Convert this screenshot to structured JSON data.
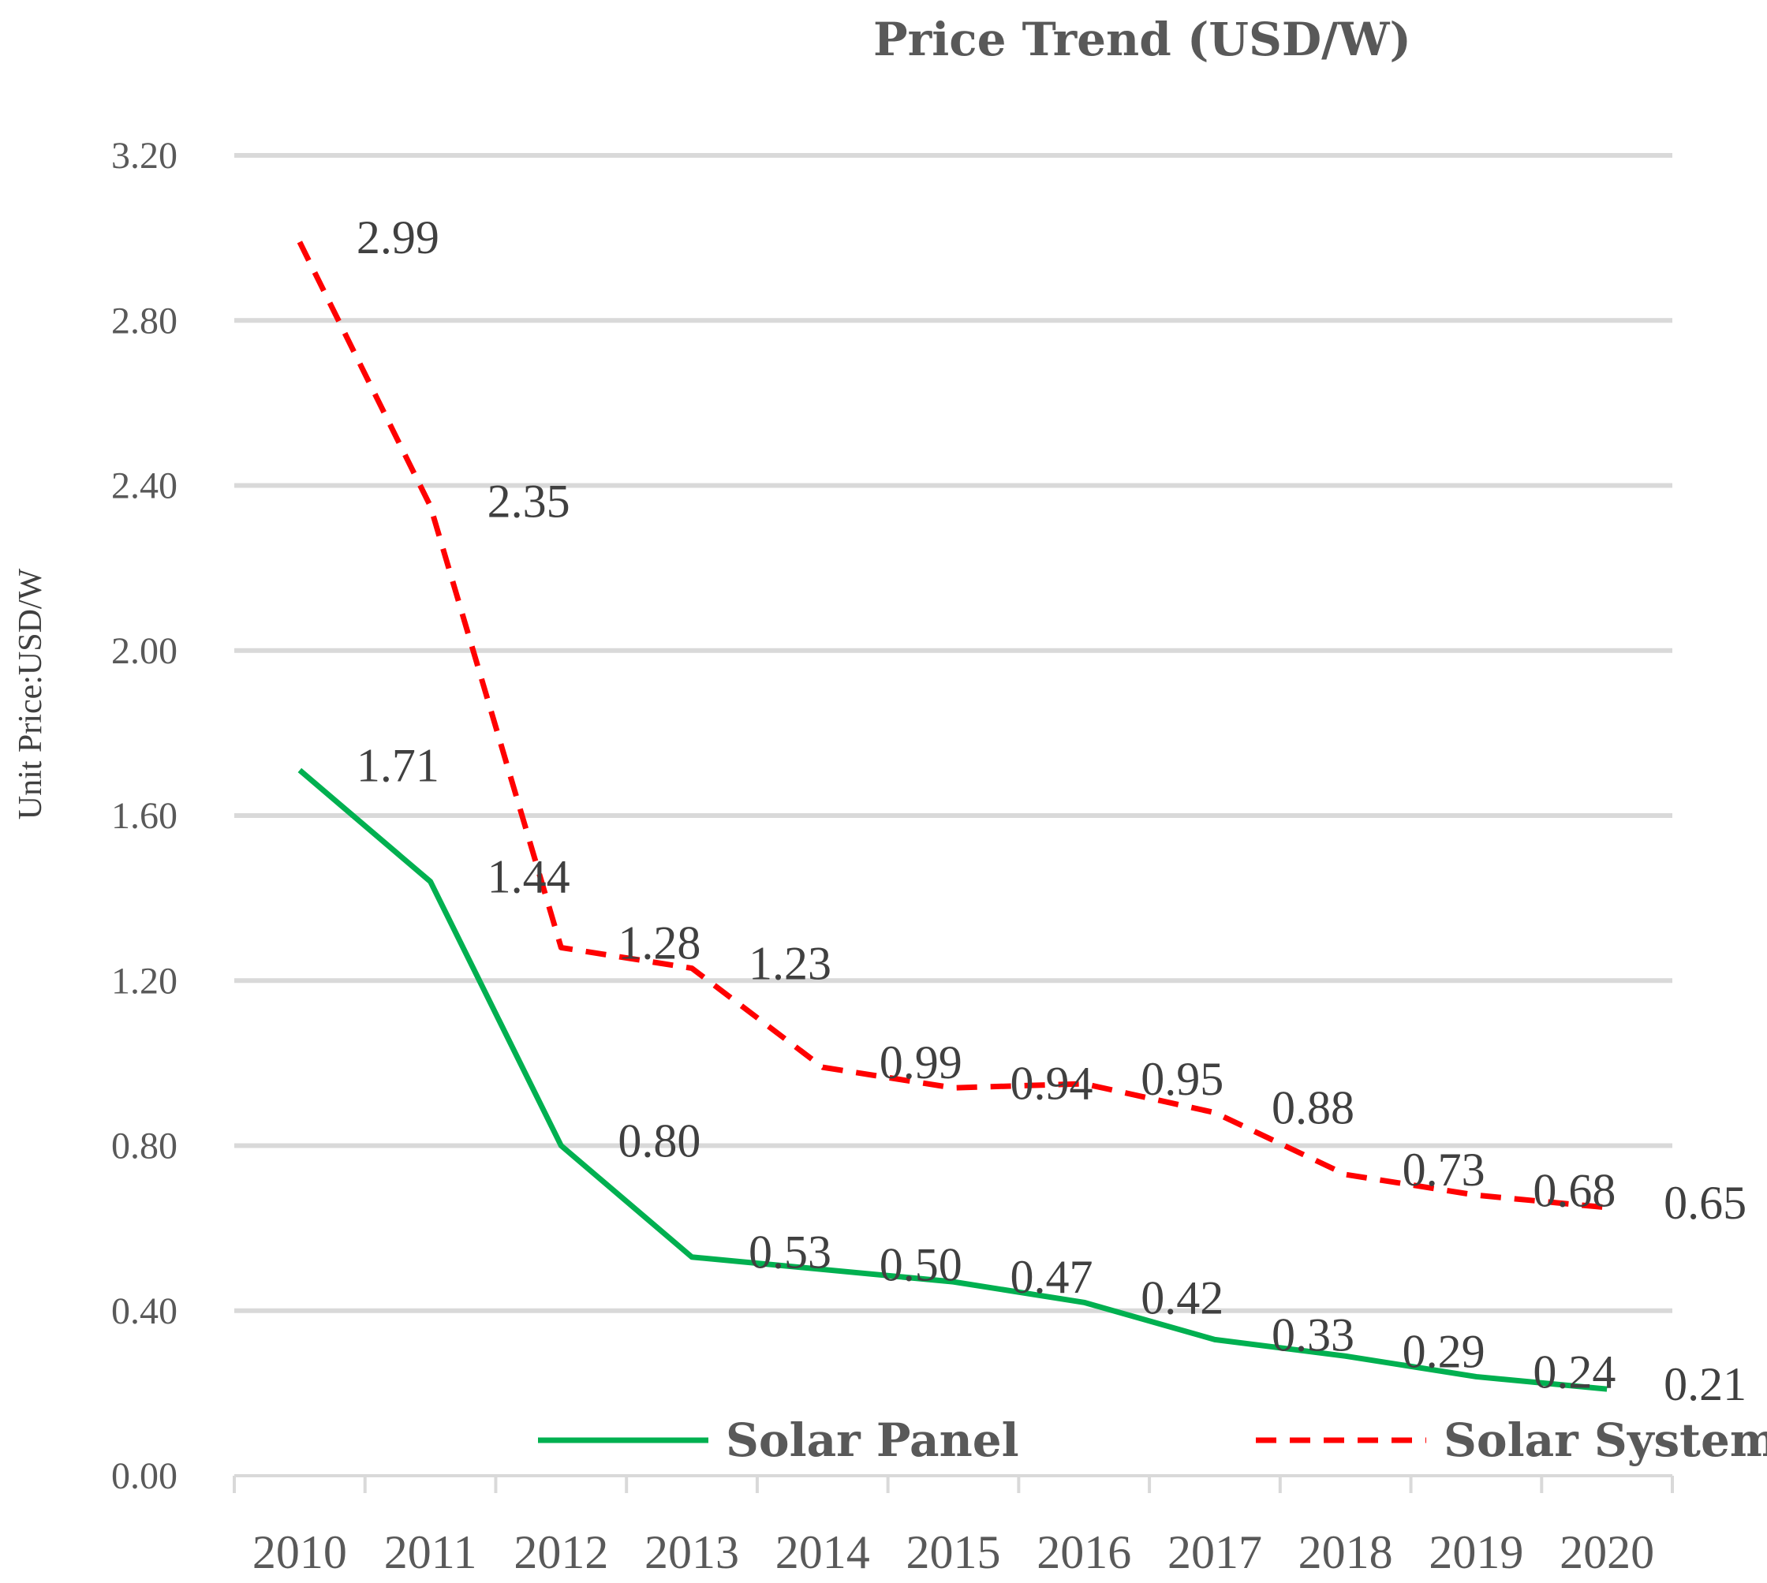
{
  "chart_data": {
    "type": "line",
    "title": "Price Trend (USD/W)",
    "xlabel": "",
    "ylabel": "Unit Price:USD/W",
    "categories": [
      "2010",
      "2011",
      "2012",
      "2013",
      "2014",
      "2015",
      "2016",
      "2017",
      "2018",
      "2019",
      "2020"
    ],
    "ylim": [
      0,
      3.2
    ],
    "yticks": [
      "0.00",
      "0.40",
      "0.80",
      "1.20",
      "1.60",
      "2.00",
      "2.40",
      "2.80",
      "3.20"
    ],
    "grid": true,
    "legend_position": "bottom",
    "series": [
      {
        "name": "Solar Panel",
        "color": "#00b050",
        "style": "solid",
        "values": [
          1.71,
          1.44,
          0.8,
          0.53,
          0.5,
          0.47,
          0.42,
          0.33,
          0.29,
          0.24,
          0.21
        ],
        "labels": [
          "1.71",
          "1.44",
          "0.80",
          "0.53",
          "0.50",
          "0.47",
          "0.42",
          "0.33",
          "0.29",
          "0.24",
          "0.21"
        ]
      },
      {
        "name": "Solar System",
        "color": "#ff0000",
        "style": "dashed",
        "values": [
          2.99,
          2.35,
          1.28,
          1.23,
          0.99,
          0.94,
          0.95,
          0.88,
          0.73,
          0.68,
          0.65
        ],
        "labels": [
          "2.99",
          "2.35",
          "1.28",
          "1.23",
          "0.99",
          "0.94",
          "0.95",
          "0.88",
          "0.73",
          "0.68",
          "0.65"
        ]
      }
    ]
  }
}
